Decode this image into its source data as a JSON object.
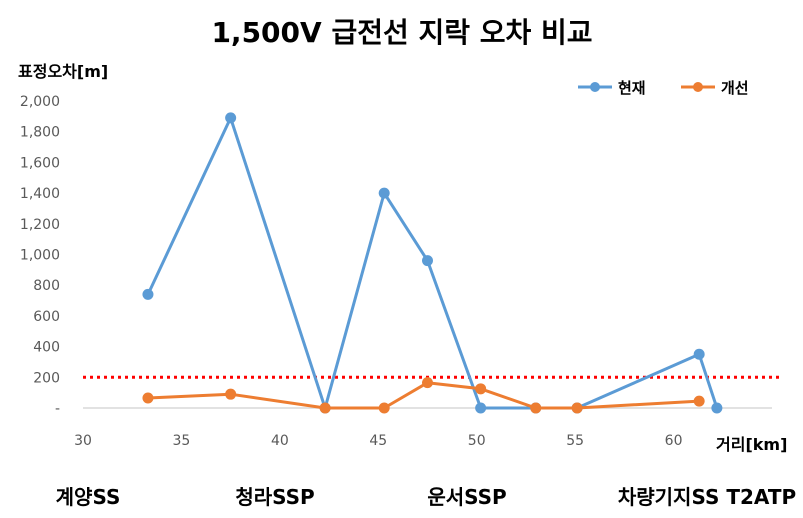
{
  "chart_data": {
    "type": "line",
    "title": "1,500V 급전선 지락 오차 비교",
    "ylabel": "표정오차[m]",
    "xlabel": "거리[km]",
    "xlim": [
      30,
      65
    ],
    "ylim": [
      0,
      2000
    ],
    "x_ticks": [
      30,
      35,
      40,
      45,
      50,
      55,
      60
    ],
    "y_ticks": [
      {
        "value": 0,
        "label": "-"
      },
      {
        "value": 200,
        "label": "200"
      },
      {
        "value": 400,
        "label": "400"
      },
      {
        "value": 600,
        "label": "600"
      },
      {
        "value": 800,
        "label": "800"
      },
      {
        "value": 1000,
        "label": "1,000"
      },
      {
        "value": 1200,
        "label": "1,200"
      },
      {
        "value": 1400,
        "label": "1,400"
      },
      {
        "value": 1600,
        "label": "1,600"
      },
      {
        "value": 1800,
        "label": "1,800"
      },
      {
        "value": 2000,
        "label": "2,000"
      }
    ],
    "grid": false,
    "legend_position": "top-right",
    "series": [
      {
        "name": "현재",
        "color": "#5B9BD5",
        "points": [
          [
            33.3,
            740
          ],
          [
            37.5,
            1890
          ],
          [
            42.3,
            0
          ],
          [
            45.3,
            1400
          ],
          [
            47.5,
            960
          ],
          [
            50.2,
            0
          ],
          [
            53,
            0
          ],
          [
            55.1,
            0
          ],
          [
            61.3,
            350
          ],
          [
            62.2,
            0
          ]
        ]
      },
      {
        "name": "개선",
        "color": "#ED7D31",
        "points": [
          [
            33.3,
            65
          ],
          [
            37.5,
            90
          ],
          [
            42.3,
            0
          ],
          [
            45.3,
            0
          ],
          [
            47.5,
            165
          ],
          [
            50.2,
            125
          ],
          [
            53,
            0
          ],
          [
            55.1,
            0
          ],
          [
            61.3,
            45
          ]
        ]
      }
    ],
    "reference_line": {
      "value": 200,
      "color": "#FF0000",
      "style": "dotted"
    },
    "stations": [
      {
        "label": "계양SS",
        "x": 33.3
      },
      {
        "label": "청라SSP",
        "x": 42.3
      },
      {
        "label": "운서SSP",
        "x": 50.2
      },
      {
        "label": "차량기지SS T2ATP",
        "x": 61.3
      }
    ]
  }
}
